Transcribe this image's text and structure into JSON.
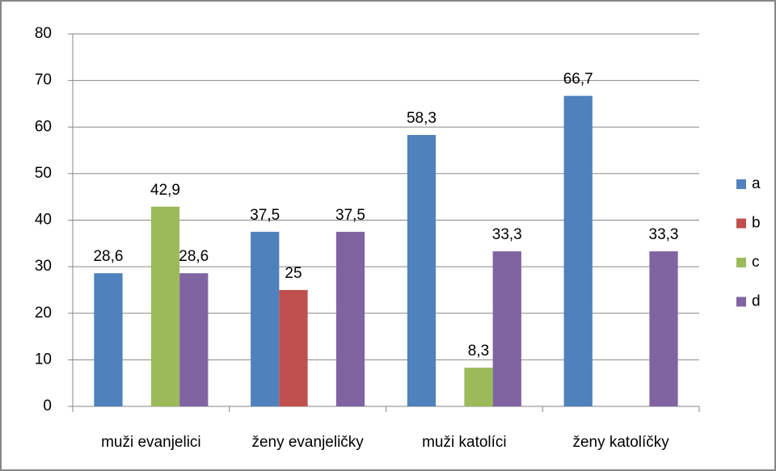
{
  "chart_data": {
    "type": "bar",
    "categories": [
      "muži evanjelici",
      "ženy evanjeličky",
      "muži katolíci",
      "ženy katolíčky"
    ],
    "series": [
      {
        "name": "a",
        "color": "#4f81bd",
        "values": [
          28.6,
          37.5,
          58.3,
          66.7
        ],
        "value_labels": [
          "28,6",
          "37,5",
          "58,3",
          "66,7"
        ]
      },
      {
        "name": "b",
        "color": "#c0504d",
        "values": [
          null,
          25,
          null,
          null
        ]
      },
      {
        "name": "c",
        "color": "#9bbb59",
        "values": [
          42.9,
          null,
          8.3,
          null
        ],
        "value_labels": [
          "42,9",
          null,
          "8,3",
          null
        ]
      },
      {
        "name": "d",
        "color": "#8064a2",
        "values": [
          28.6,
          37.5,
          33.3,
          33.3
        ],
        "value_labels": [
          "28,6",
          "37,5",
          "33,3",
          "33,3"
        ]
      }
    ],
    "ylim": [
      0,
      80
    ],
    "yticks": [
      0,
      10,
      20,
      30,
      40,
      50,
      60,
      70,
      80
    ],
    "grid": true,
    "legend": "right"
  }
}
